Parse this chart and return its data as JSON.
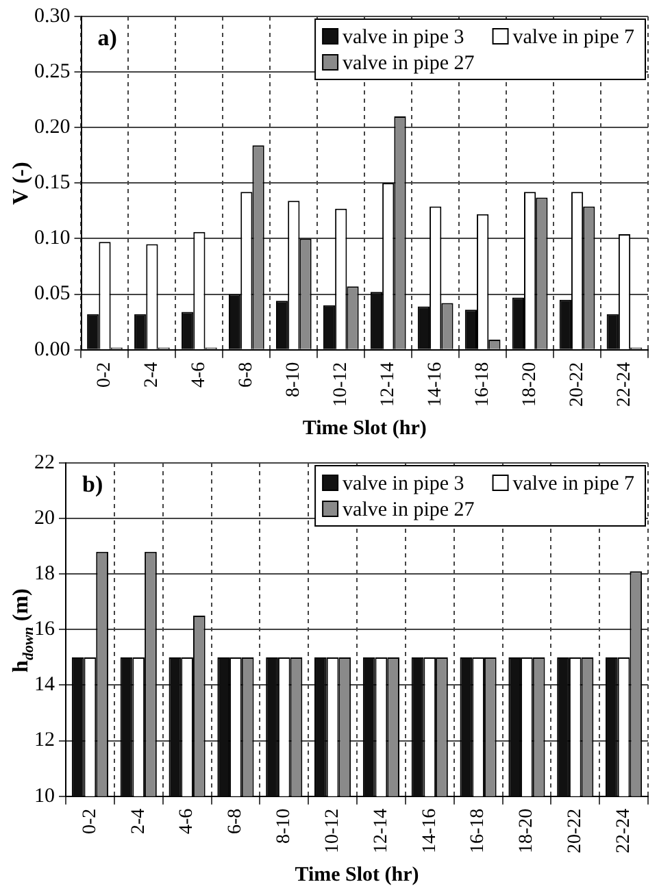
{
  "chart_data": [
    {
      "type": "bar",
      "ylabel": "V (-)",
      "xlabel": "Time Slot (hr)",
      "annotations": [
        "a)"
      ],
      "categories": [
        "0-2",
        "2-4",
        "4-6",
        "6-8",
        "8-10",
        "10-12",
        "12-14",
        "14-16",
        "16-18",
        "18-20",
        "20-22",
        "22-24"
      ],
      "series": [
        {
          "name": "valve in pipe 3",
          "color": "#111111",
          "values": [
            0.032,
            0.032,
            0.034,
            0.05,
            0.044,
            0.04,
            0.052,
            0.039,
            0.036,
            0.047,
            0.045,
            0.032
          ]
        },
        {
          "name": "valve in pipe 7",
          "color": "#ffffff",
          "values": [
            0.097,
            0.095,
            0.106,
            0.142,
            0.134,
            0.127,
            0.15,
            0.129,
            0.122,
            0.142,
            0.142,
            0.104
          ]
        },
        {
          "name": "valve in pipe 27",
          "color": "#8a8a8a",
          "values": [
            0.002,
            0.002,
            0.002,
            0.184,
            0.1,
            0.057,
            0.21,
            0.042,
            0.009,
            0.137,
            0.129,
            0.002
          ]
        }
      ],
      "ylim": [
        0,
        0.3
      ],
      "yticks": [
        {
          "value": 0,
          "label": "0.00"
        },
        {
          "value": 0.05,
          "label": "0.05"
        },
        {
          "value": 0.1,
          "label": "0.10"
        },
        {
          "value": 0.15,
          "label": "0.15"
        },
        {
          "value": 0.2,
          "label": "0.20"
        },
        {
          "value": 0.25,
          "label": "0.25"
        },
        {
          "value": 0.3,
          "label": "0.30"
        }
      ],
      "grid": true,
      "legend": "top right"
    },
    {
      "type": "bar",
      "ylabel": "h$_{down}$ (m)",
      "xlabel": "Time Slot (hr)",
      "annotations": [
        "b)"
      ],
      "categories": [
        "0-2",
        "2-4",
        "4-6",
        "6-8",
        "8-10",
        "10-12",
        "12-14",
        "14-16",
        "16-18",
        "18-20",
        "20-22",
        "22-24"
      ],
      "series": [
        {
          "name": "valve in pipe 3",
          "color": "#111111",
          "values": [
            15,
            15,
            15,
            15,
            15,
            15,
            15,
            15,
            15,
            15,
            15,
            15
          ]
        },
        {
          "name": "valve in pipe 7",
          "color": "#ffffff",
          "values": [
            15,
            15,
            15,
            15,
            15,
            15,
            15,
            15,
            15,
            15,
            15,
            15
          ]
        },
        {
          "name": "valve in pipe 27",
          "color": "#8a8a8a",
          "values": [
            18.8,
            18.8,
            16.5,
            15,
            15,
            15,
            15,
            15,
            15,
            15,
            15,
            18.1
          ]
        }
      ],
      "ylim": [
        10,
        22
      ],
      "yticks": [
        10,
        12,
        14,
        16,
        18,
        20,
        22
      ],
      "grid": true,
      "legend": "top right"
    }
  ]
}
